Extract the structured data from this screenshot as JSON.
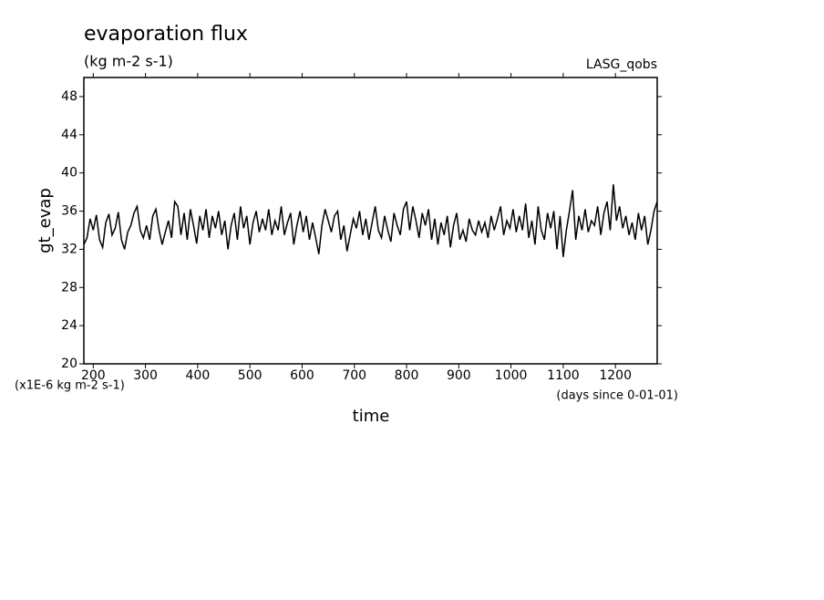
{
  "chart_data": {
    "type": "line",
    "title": "evaporation flux",
    "subtitle": "(kg m-2 s-1)",
    "source_label": "LASG_qobs",
    "y_label": "gt_evap",
    "x_label": "time",
    "y_unit_note": "(x1E-6 kg m-2 s-1)",
    "x_unit_note": "(days since 0-01-01)",
    "xlim": [
      182,
      1280
    ],
    "xticks": [
      200,
      300,
      400,
      500,
      600,
      700,
      800,
      900,
      1000,
      1100,
      1200
    ],
    "ylim": [
      20,
      50
    ],
    "yticks": [
      20,
      24,
      28,
      32,
      36,
      40,
      44,
      48
    ],
    "x": [
      182,
      188,
      194,
      200,
      206,
      212,
      218,
      224,
      230,
      236,
      242,
      248,
      254,
      260,
      266,
      272,
      278,
      284,
      290,
      296,
      302,
      308,
      314,
      320,
      326,
      332,
      338,
      344,
      350,
      356,
      362,
      368,
      374,
      380,
      386,
      392,
      398,
      404,
      410,
      416,
      422,
      428,
      434,
      440,
      446,
      452,
      458,
      464,
      470,
      476,
      482,
      488,
      494,
      500,
      506,
      512,
      518,
      524,
      530,
      536,
      542,
      548,
      554,
      560,
      566,
      572,
      578,
      584,
      590,
      596,
      602,
      608,
      614,
      620,
      626,
      632,
      638,
      644,
      650,
      656,
      662,
      668,
      674,
      680,
      686,
      692,
      698,
      704,
      710,
      716,
      722,
      728,
      734,
      740,
      746,
      752,
      758,
      764,
      770,
      776,
      782,
      788,
      794,
      800,
      806,
      812,
      818,
      824,
      830,
      836,
      842,
      848,
      854,
      860,
      866,
      872,
      878,
      884,
      890,
      896,
      902,
      908,
      914,
      920,
      926,
      932,
      938,
      944,
      950,
      956,
      962,
      968,
      974,
      980,
      986,
      992,
      998,
      1004,
      1010,
      1016,
      1022,
      1028,
      1034,
      1040,
      1046,
      1052,
      1058,
      1064,
      1070,
      1076,
      1082,
      1088,
      1094,
      1100,
      1106,
      1112,
      1118,
      1124,
      1130,
      1136,
      1142,
      1148,
      1154,
      1160,
      1166,
      1172,
      1178,
      1184,
      1190,
      1196,
      1202,
      1208,
      1214,
      1220,
      1226,
      1232,
      1238,
      1244,
      1250,
      1256,
      1262,
      1268,
      1274,
      1280
    ],
    "series": [
      {
        "color": "#000000",
        "values": [
          32.5,
          33.2,
          35.2,
          34.0,
          35.6,
          33.0,
          32.2,
          34.8,
          35.7,
          33.5,
          34.2,
          35.9,
          33.0,
          32.0,
          33.8,
          34.5,
          35.8,
          36.5,
          34.0,
          33.2,
          34.5,
          33.0,
          35.5,
          36.2,
          34.0,
          32.5,
          33.8,
          35.0,
          33.2,
          37.0,
          36.5,
          33.5,
          35.8,
          33.0,
          36.2,
          34.5,
          32.6,
          35.5,
          34.0,
          36.2,
          33.2,
          35.5,
          34.2,
          36.0,
          33.5,
          35.0,
          32.0,
          34.5,
          35.8,
          33.0,
          36.5,
          34.2,
          35.5,
          32.5,
          34.8,
          36.0,
          33.8,
          35.2,
          34.0,
          36.2,
          33.5,
          35.0,
          34.0,
          36.5,
          33.5,
          34.8,
          35.8,
          32.5,
          34.5,
          36.0,
          33.8,
          35.5,
          33.0,
          34.8,
          33.2,
          31.5,
          34.5,
          36.2,
          35.0,
          33.8,
          35.5,
          36.0,
          33.0,
          34.5,
          31.8,
          33.5,
          35.2,
          34.2,
          36.0,
          33.5,
          35.2,
          33.0,
          34.8,
          36.5,
          34.0,
          33.2,
          35.5,
          34.0,
          32.8,
          35.8,
          34.5,
          33.5,
          36.2,
          37.0,
          34.0,
          36.5,
          35.0,
          33.2,
          35.8,
          34.5,
          36.2,
          33.0,
          35.2,
          32.5,
          34.8,
          33.5,
          35.5,
          32.2,
          34.5,
          35.8,
          33.0,
          34.0,
          32.8,
          35.2,
          34.0,
          33.5,
          35.0,
          33.8,
          34.8,
          33.2,
          35.5,
          34.0,
          35.2,
          36.5,
          33.5,
          35.0,
          34.2,
          36.2,
          33.8,
          35.5,
          34.0,
          36.8,
          33.2,
          35.0,
          32.5,
          36.5,
          34.0,
          33.0,
          35.8,
          34.2,
          36.0,
          32.0,
          35.5,
          31.2,
          34.0,
          36.0,
          38.2,
          33.0,
          35.5,
          34.0,
          36.2,
          33.8,
          35.0,
          34.5,
          36.5,
          33.5,
          35.8,
          37.0,
          34.0,
          38.8,
          35.0,
          36.5,
          34.2,
          35.5,
          33.5,
          34.8,
          33.0,
          35.8,
          34.0,
          35.5,
          32.5,
          34.0,
          36.0,
          37.0
        ]
      }
    ]
  }
}
